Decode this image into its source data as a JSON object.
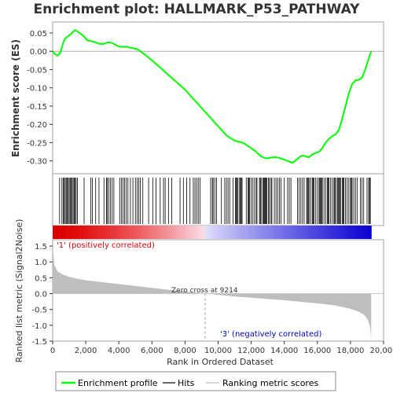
{
  "chart_data": {
    "type": "line",
    "title": "Enrichment plot: HALLMARK_P53_PATHWAY",
    "xlabel": "Rank in Ordered Dataset",
    "ylabel_top": "Enrichment score (ES)",
    "ylabel_bottom": "Ranked list metric (Signal2Noise)",
    "xlim": [
      0,
      20000
    ],
    "es_ylim": [
      -0.335,
      0.08
    ],
    "metric_ylim": [
      -1.5,
      1.7
    ],
    "x_ticks": [
      {
        "value": 0,
        "label": "0"
      },
      {
        "value": 2000,
        "label": "2,000"
      },
      {
        "value": 4000,
        "label": "4,000"
      },
      {
        "value": 6000,
        "label": "6,000"
      },
      {
        "value": 8000,
        "label": "8,000"
      },
      {
        "value": 10000,
        "label": "10,000"
      },
      {
        "value": 12000,
        "label": "12,000"
      },
      {
        "value": 14000,
        "label": "14,000"
      },
      {
        "value": 16000,
        "label": "16,000"
      },
      {
        "value": 18000,
        "label": "18,000"
      },
      {
        "value": 20000,
        "label": "20,000"
      }
    ],
    "es_ticks": [
      {
        "value": 0.05,
        "label": "0.05"
      },
      {
        "value": 0.0,
        "label": "0.00"
      },
      {
        "value": -0.05,
        "label": "-0.05"
      },
      {
        "value": -0.1,
        "label": "-0.10"
      },
      {
        "value": -0.15,
        "label": "-0.15"
      },
      {
        "value": -0.2,
        "label": "-0.20"
      },
      {
        "value": -0.25,
        "label": "-0.25"
      },
      {
        "value": -0.3,
        "label": "-0.30"
      }
    ],
    "metric_ticks": [
      {
        "value": 1.5,
        "label": "1.5"
      },
      {
        "value": 1.0,
        "label": "1.0"
      },
      {
        "value": 0.5,
        "label": "0.5"
      },
      {
        "value": 0.0,
        "label": "0.0"
      },
      {
        "value": -0.5,
        "label": "-0.5"
      },
      {
        "value": -1.0,
        "label": "-1.0"
      },
      {
        "value": -1.5,
        "label": "-1.5"
      }
    ],
    "enrichment_profile": {
      "name": "Enrichment profile",
      "color": "#00ff00",
      "x": [
        0,
        150,
        300,
        450,
        550,
        650,
        750,
        900,
        1050,
        1200,
        1350,
        1500,
        1700,
        1900,
        2100,
        2300,
        2500,
        2700,
        2900,
        3100,
        3300,
        3500,
        3700,
        3900,
        4100,
        4300,
        4500,
        4700,
        4900,
        5100,
        5300,
        5600,
        6000,
        6500,
        7000,
        7500,
        8000,
        8500,
        9000,
        9500,
        10000,
        10500,
        11000,
        11500,
        12000,
        12300,
        12600,
        12900,
        13100,
        13300,
        13500,
        13700,
        13900,
        14100,
        14300,
        14500,
        14700,
        14900,
        15100,
        15300,
        15500,
        15700,
        15900,
        16100,
        16300,
        16500,
        16700,
        16900,
        17100,
        17300,
        17500,
        17700,
        17900,
        18100,
        18300,
        18500,
        18700,
        18900,
        19100,
        19250
      ],
      "y": [
        0.0,
        -0.008,
        -0.012,
        -0.005,
        0.01,
        0.025,
        0.035,
        0.04,
        0.045,
        0.052,
        0.058,
        0.054,
        0.048,
        0.04,
        0.03,
        0.028,
        0.026,
        0.022,
        0.02,
        0.02,
        0.024,
        0.024,
        0.02,
        0.015,
        0.012,
        0.012,
        0.012,
        0.01,
        0.008,
        0.006,
        0.0,
        -0.01,
        -0.025,
        -0.045,
        -0.065,
        -0.085,
        -0.105,
        -0.13,
        -0.155,
        -0.18,
        -0.205,
        -0.23,
        -0.245,
        -0.25,
        -0.265,
        -0.275,
        -0.288,
        -0.293,
        -0.292,
        -0.29,
        -0.29,
        -0.292,
        -0.295,
        -0.298,
        -0.302,
        -0.305,
        -0.298,
        -0.29,
        -0.285,
        -0.288,
        -0.29,
        -0.282,
        -0.278,
        -0.275,
        -0.265,
        -0.25,
        -0.24,
        -0.232,
        -0.228,
        -0.215,
        -0.185,
        -0.15,
        -0.115,
        -0.09,
        -0.08,
        -0.078,
        -0.072,
        -0.05,
        -0.02,
        0.0
      ]
    },
    "hits": {
      "name": "Hits",
      "x": [
        420,
        560,
        640,
        700,
        760,
        820,
        880,
        940,
        1000,
        1060,
        1120,
        1180,
        1240,
        1300,
        1360,
        1420,
        1500,
        1900,
        2300,
        2400,
        2600,
        2800,
        3100,
        3250,
        3300,
        3400,
        3500,
        3600,
        3700,
        4050,
        4150,
        4250,
        4350,
        4450,
        4550,
        4700,
        4850,
        5000,
        5100,
        5200,
        5300,
        5450,
        5800,
        6050,
        6250,
        6500,
        6700,
        6800,
        7000,
        7200,
        7700,
        7900,
        8100,
        8300,
        8500,
        8600,
        8700,
        8800,
        8900,
        9550,
        9650,
        9700,
        9800,
        9900,
        10200,
        10400,
        10500,
        10600,
        10700,
        10900,
        11050,
        11100,
        11150,
        11200,
        11300,
        11350,
        11400,
        11450,
        11700,
        11800,
        11850,
        11900,
        12000,
        12100,
        12200,
        12300,
        12350,
        12500,
        12550,
        12600,
        12700,
        12750,
        12800,
        12850,
        12900,
        12950,
        13050,
        13100,
        13200,
        13250,
        13400,
        13500,
        13600,
        13700,
        13800,
        14000,
        14200,
        14300,
        14400,
        14800,
        14900,
        15000,
        15100,
        15200,
        15350,
        15400,
        15450,
        15500,
        15600,
        15700,
        15750,
        15800,
        15900,
        16000,
        16100,
        16150,
        16200,
        16250,
        16300,
        16400,
        16500,
        16600,
        16650,
        16700,
        16800,
        16900,
        17000,
        17050,
        17100,
        17200,
        17250,
        17300,
        17350,
        17400,
        17500,
        17550,
        17600,
        17700,
        17800,
        17900,
        18000,
        18050,
        18100,
        18200,
        18300,
        18400,
        18600,
        18700,
        18800,
        19000,
        19100,
        19150,
        19200
      ]
    },
    "ranked_metric": {
      "name": "Ranked list metric scores",
      "color": "#bebebe",
      "x": [
        0,
        100,
        300,
        600,
        1000,
        1500,
        2000,
        3000,
        4000,
        5000,
        6000,
        7000,
        8000,
        9214,
        10000,
        11000,
        12000,
        13000,
        14000,
        15000,
        16000,
        17000,
        17500,
        18000,
        18500,
        18800,
        19000,
        19100,
        19200,
        19250
      ],
      "y": [
        1.5,
        0.9,
        0.7,
        0.6,
        0.53,
        0.47,
        0.42,
        0.36,
        0.3,
        0.24,
        0.18,
        0.12,
        0.07,
        0.0,
        -0.04,
        -0.09,
        -0.13,
        -0.17,
        -0.21,
        -0.26,
        -0.31,
        -0.37,
        -0.42,
        -0.48,
        -0.57,
        -0.66,
        -0.78,
        -0.9,
        -1.1,
        -1.45
      ]
    },
    "zero_cross": 9214,
    "annotations": {
      "zero_cross_text": "Zero cross at 9214",
      "positive_label": "'1' (positively correlated)",
      "negative_label": "'3' (negatively correlated)"
    },
    "legend": [
      {
        "label": "Enrichment profile",
        "color": "#00ff00"
      },
      {
        "label": "Hits",
        "color": "#000000"
      },
      {
        "label": "Ranking metric scores",
        "color": "#bebebe"
      }
    ],
    "colors": {
      "heat_positive": "#ff0000",
      "heat_negative": "#0000ff"
    },
    "grid": false,
    "legend_position": "bottom"
  }
}
